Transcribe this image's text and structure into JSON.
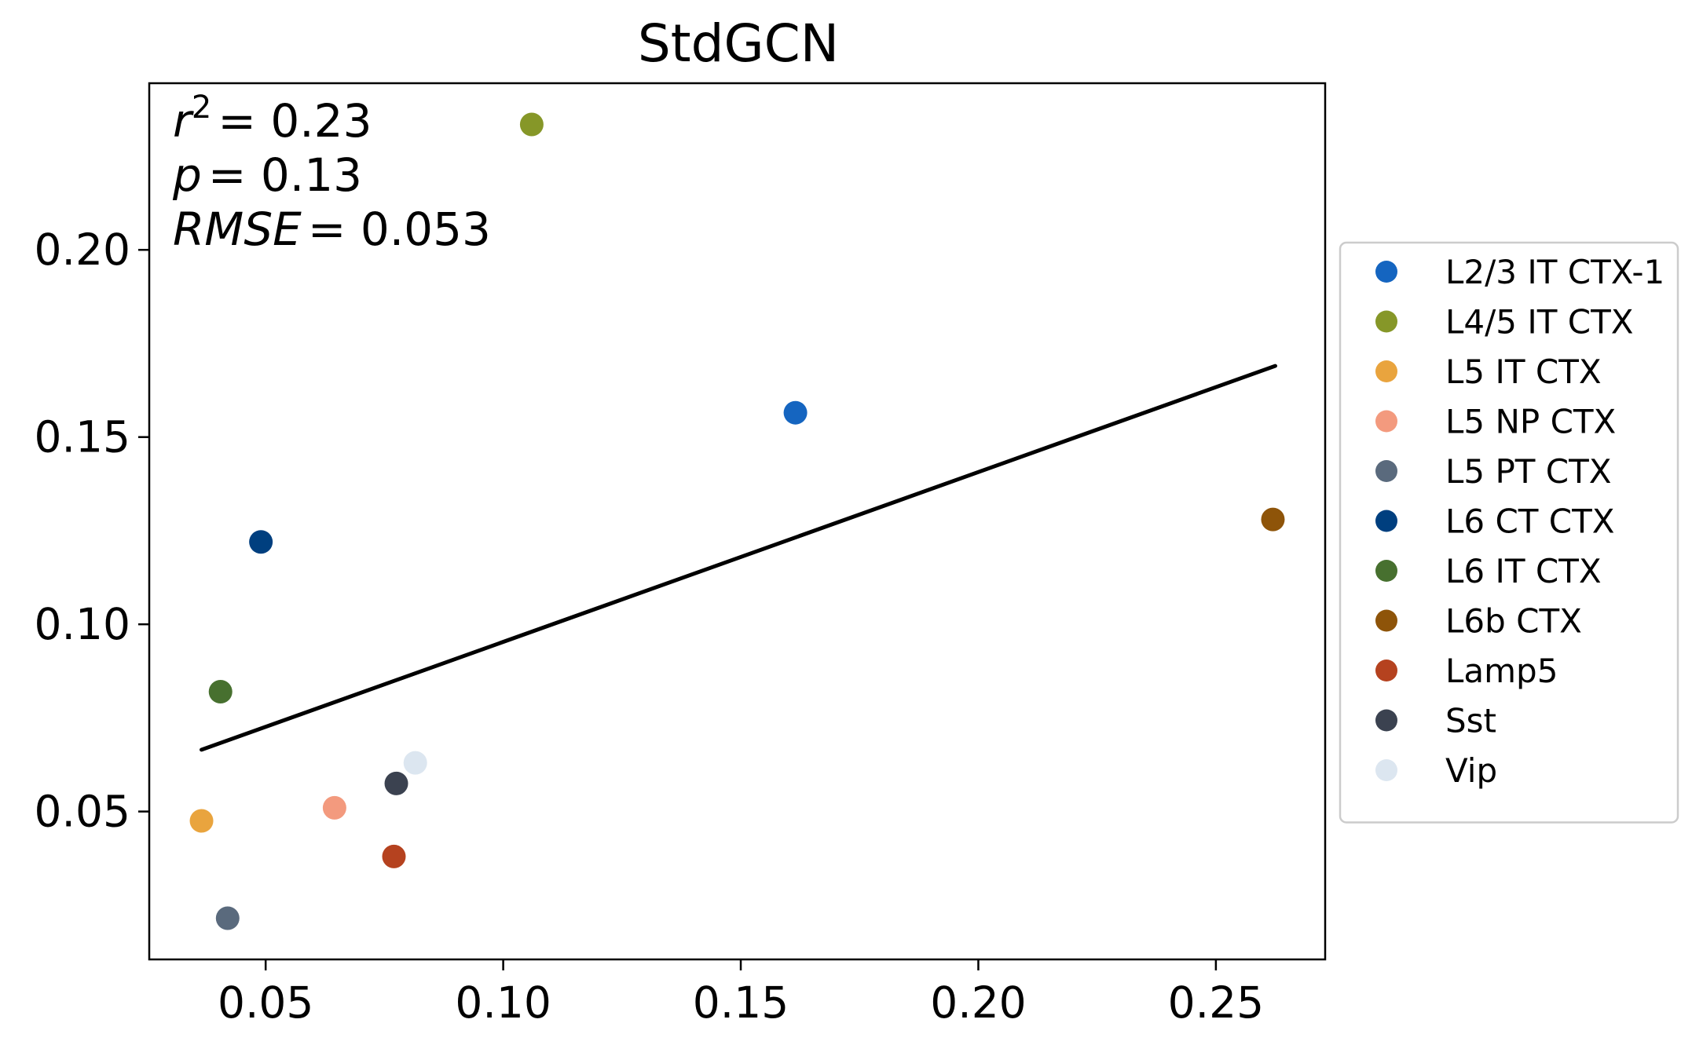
{
  "chart_data": {
    "type": "scatter",
    "title": "StdGCN",
    "xlabel": "",
    "ylabel": "",
    "xlim": [
      0.0255,
      0.273
    ],
    "ylim": [
      0.0105,
      0.2445
    ],
    "xticks": [
      0.05,
      0.1,
      0.15,
      0.2,
      0.25
    ],
    "xtick_labels": [
      "0.05",
      "0.10",
      "0.15",
      "0.20",
      "0.25"
    ],
    "yticks": [
      0.05,
      0.1,
      0.15,
      0.2
    ],
    "ytick_labels": [
      "0.05",
      "0.10",
      "0.15",
      "0.20"
    ],
    "grid": false,
    "legend_position": "right",
    "stats": [
      {
        "name": "r",
        "sup": "2",
        "value": "= 0.23"
      },
      {
        "name": "p",
        "sup": "",
        "value": "= 0.13"
      },
      {
        "name": "RMSE",
        "sup": "",
        "value": "= 0.053"
      }
    ],
    "fit_line": {
      "x": [
        0.0365,
        0.2625
      ],
      "y": [
        0.0665,
        0.169
      ],
      "color": "#000000"
    },
    "series": [
      {
        "name": "L2/3 IT CTX-1",
        "color": "#1565c0",
        "x": [
          0.1615
        ],
        "y": [
          0.1565
        ]
      },
      {
        "name": "L4/5 IT CTX",
        "color": "#869728",
        "x": [
          0.106
        ],
        "y": [
          0.2335
        ]
      },
      {
        "name": "L5 IT CTX",
        "color": "#e9a43e",
        "x": [
          0.0365
        ],
        "y": [
          0.0475
        ]
      },
      {
        "name": "L5 NP CTX",
        "color": "#f39a7e",
        "x": [
          0.0645
        ],
        "y": [
          0.051
        ]
      },
      {
        "name": "L5 PT CTX",
        "color": "#5a6a7d",
        "x": [
          0.042
        ],
        "y": [
          0.0215
        ]
      },
      {
        "name": "L6 CT CTX",
        "color": "#003f7f",
        "x": [
          0.049
        ],
        "y": [
          0.122
        ]
      },
      {
        "name": "L6 IT CTX",
        "color": "#47702f",
        "x": [
          0.0405
        ],
        "y": [
          0.082
        ]
      },
      {
        "name": "L6b CTX",
        "color": "#8e5409",
        "x": [
          0.262
        ],
        "y": [
          0.128
        ]
      },
      {
        "name": "Lamp5",
        "color": "#b5421f",
        "x": [
          0.077
        ],
        "y": [
          0.038
        ]
      },
      {
        "name": "Sst",
        "color": "#3b4250",
        "x": [
          0.0775
        ],
        "y": [
          0.0575
        ]
      },
      {
        "name": "Vip",
        "color": "#dce6f0",
        "x": [
          0.0815
        ],
        "y": [
          0.063
        ]
      }
    ]
  }
}
